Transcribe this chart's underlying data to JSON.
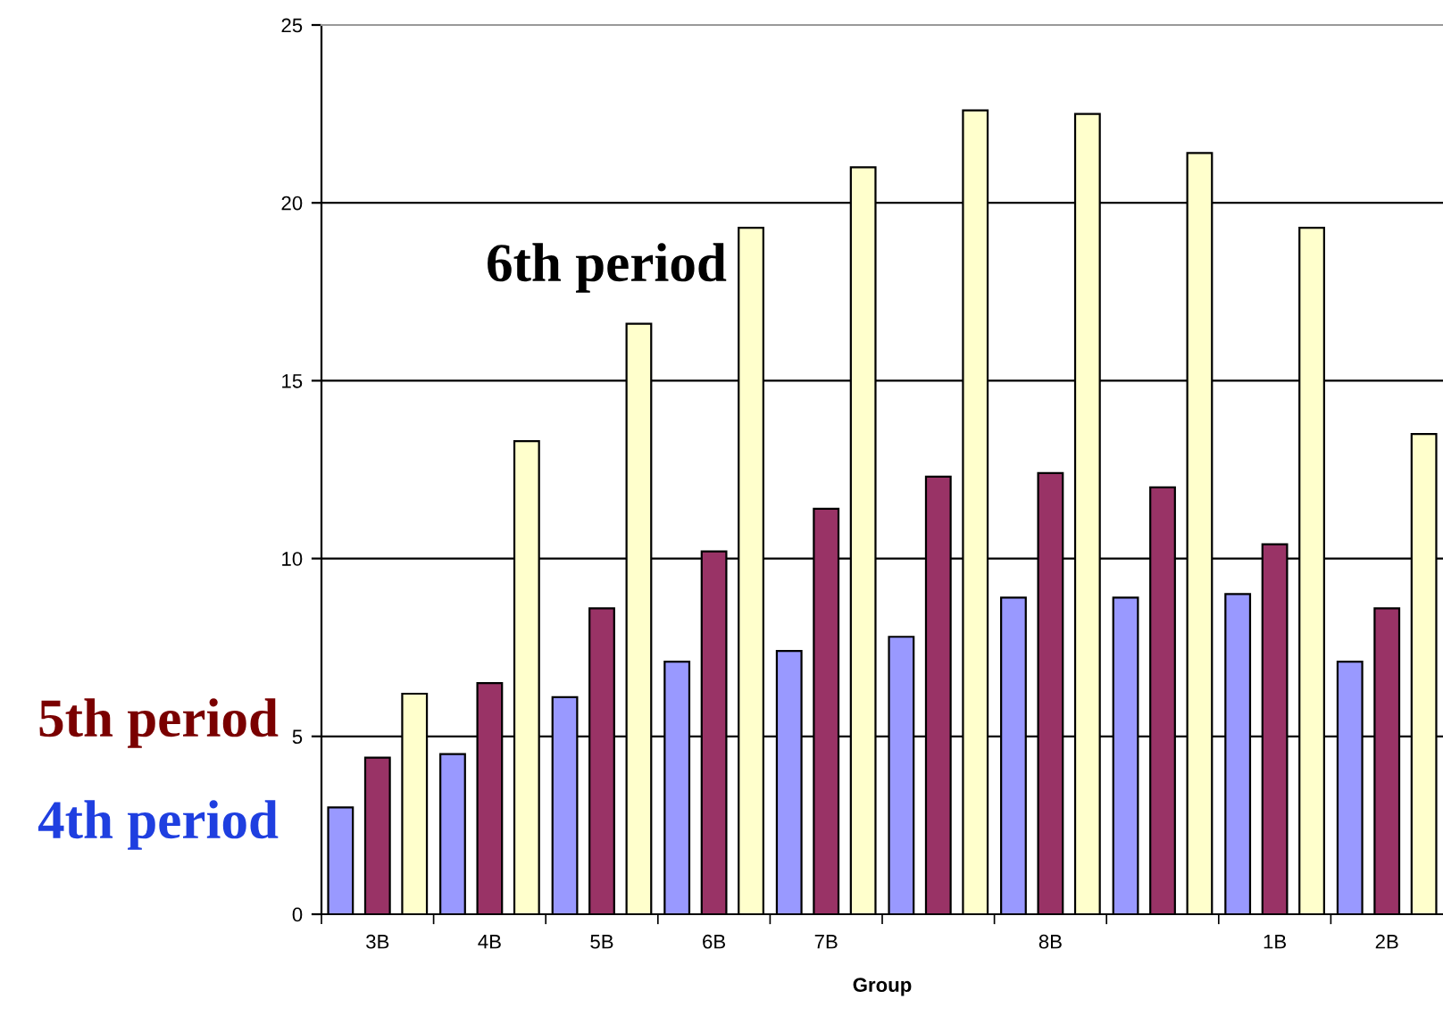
{
  "chart_data": {
    "type": "bar",
    "xlabel": "Group",
    "categories": [
      "3B",
      "4B",
      "5B",
      "6B",
      "7B",
      null,
      "8B",
      null,
      "1B",
      "2B"
    ],
    "series": [
      {
        "name": "4th period",
        "color": "#9999ff",
        "values": [
          3.0,
          4.5,
          6.1,
          7.1,
          7.4,
          7.8,
          8.9,
          8.9,
          9.0,
          7.1
        ]
      },
      {
        "name": "5th period",
        "color": "#993366",
        "values": [
          4.4,
          6.5,
          8.6,
          10.2,
          11.4,
          12.3,
          12.4,
          12.0,
          10.4,
          8.6
        ]
      },
      {
        "name": "6th period",
        "color": "#ffffcc",
        "values": [
          6.2,
          13.3,
          16.6,
          19.3,
          21.0,
          22.6,
          22.5,
          21.4,
          19.3,
          13.5
        ]
      }
    ],
    "ylim": [
      0,
      25
    ],
    "yticks": [
      0,
      5,
      10,
      15,
      20,
      25
    ],
    "grid": "y",
    "legend": false
  }
}
